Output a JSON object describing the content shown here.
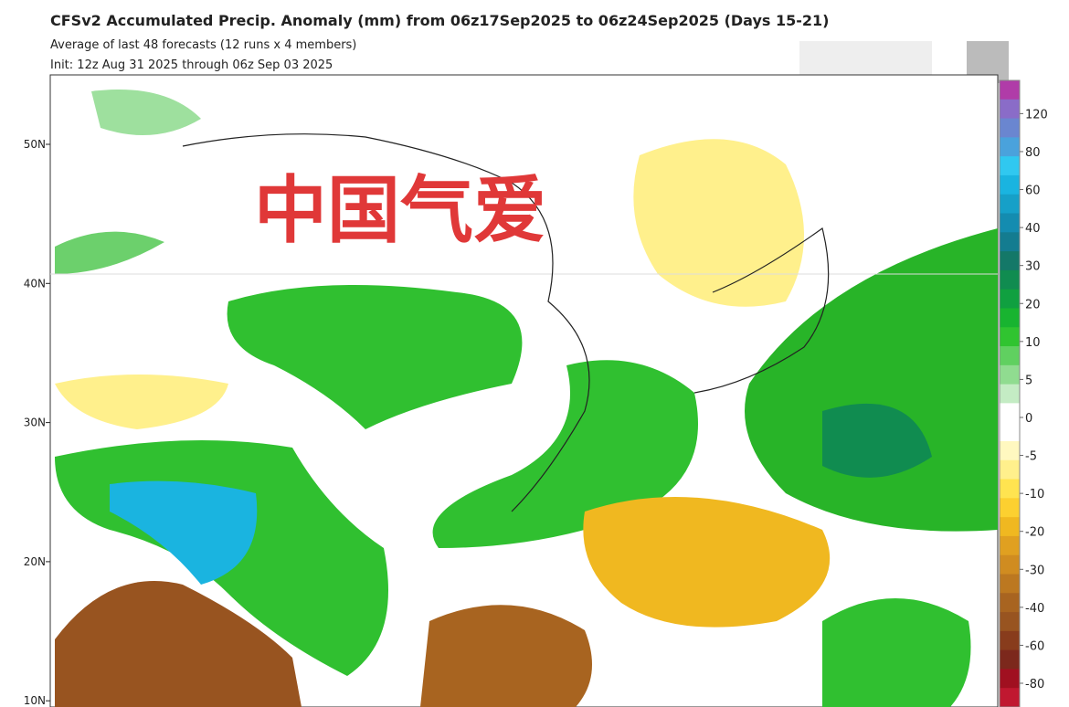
{
  "header": {
    "title": "CFSv2 Accumulated Precip. Anomaly (mm) from 06z17Sep2025 to 06z24Sep2025 (Days 15-21)",
    "subtitle": "Average of last 48 forecasts (12 runs x 4 members)",
    "init": "Init: 12z Aug 31 2025 through 06z Sep 03 2025"
  },
  "watermark": "中国气爱",
  "lat_labels": [
    "50N",
    "40N",
    "30N",
    "20N",
    "10N"
  ],
  "colorbar": {
    "labels": [
      120,
      80,
      60,
      40,
      30,
      20,
      10,
      5,
      0,
      -5,
      -10,
      -20,
      -30,
      -40,
      -60,
      -80
    ],
    "colors": [
      "#b03ca8",
      "#8a6cc8",
      "#6a86d0",
      "#4aa2dc",
      "#30c8f0",
      "#1ab4e0",
      "#16a0c8",
      "#148cb0",
      "#147c90",
      "#147868",
      "#108c50",
      "#10a040",
      "#18b430",
      "#30c430",
      "#60d060",
      "#90dc90",
      "#c4ecc4",
      "#ffffff",
      "#ffffff",
      "#fff8c0",
      "#fff08c",
      "#ffe450",
      "#fcd030",
      "#f0b820",
      "#e0a020",
      "#d08c20",
      "#bc7820",
      "#a86420",
      "#985420",
      "#883c1c",
      "#7c281c",
      "#a01020",
      "#c01830"
    ]
  }
}
